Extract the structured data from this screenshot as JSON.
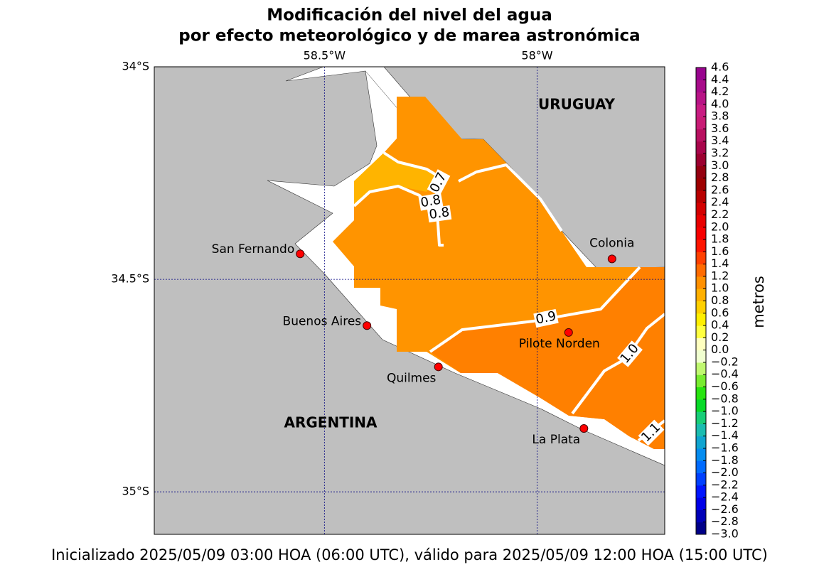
{
  "title": [
    "Modificación del nivel del agua",
    "por efecto meteorológico y de marea astronómica"
  ],
  "footer": "Inicializado 2025/05/09 03:00 HOA (06:00 UTC), válido para 2025/05/09 12:00 HOA (15:00 UTC)",
  "map": {
    "xlim": [
      58.9,
      57.7
    ],
    "ylim": [
      34,
      35.1
    ],
    "xticks": [
      {
        "value": 58.5,
        "label": "58.5°W"
      },
      {
        "value": 58,
        "label": "58°W"
      }
    ],
    "yticks": [
      {
        "value": 34,
        "label": "34°S"
      },
      {
        "value": 34.5,
        "label": "34.5°S"
      },
      {
        "value": 35,
        "label": "35°S"
      }
    ],
    "grid": true,
    "grid_color": "#000080",
    "land_color": "#bfbfbf",
    "countries": [
      "URUGUAY",
      "ARGENTINA"
    ],
    "cities": [
      {
        "name": "San Fernando",
        "lon": 58.557,
        "lat": 34.44
      },
      {
        "name": "Buenos Aires",
        "lon": 58.4,
        "lat": 34.609
      },
      {
        "name": "Quilmes",
        "lon": 58.232,
        "lat": 34.706
      },
      {
        "name": "Pilote Norden",
        "lon": 57.926,
        "lat": 34.625
      },
      {
        "name": "Colonia",
        "lon": 57.824,
        "lat": 34.452
      },
      {
        "name": "La Plata",
        "lon": 57.89,
        "lat": 34.851
      }
    ],
    "marker_color": "#ff0000",
    "contour_labels": [
      "0.7",
      "0.8",
      "0.8",
      "0.9",
      "1.0",
      "1.1"
    ]
  },
  "colorbar": {
    "label": "metros",
    "lim": [
      -3.0,
      4.6
    ],
    "ticks": [
      {
        "value": -3.0,
        "label": "−3.0"
      },
      {
        "value": -2.8,
        "label": "−2.8"
      },
      {
        "value": -2.6,
        "label": "−2.6"
      },
      {
        "value": -2.4,
        "label": "−2.4"
      },
      {
        "value": -2.2,
        "label": "−2.2"
      },
      {
        "value": -2.0,
        "label": "−2.0"
      },
      {
        "value": -1.8,
        "label": "−1.8"
      },
      {
        "value": -1.6,
        "label": "−1.6"
      },
      {
        "value": -1.4,
        "label": "−1.4"
      },
      {
        "value": -1.2,
        "label": "−1.2"
      },
      {
        "value": -1.0,
        "label": "−1.0"
      },
      {
        "value": -0.8,
        "label": "−0.8"
      },
      {
        "value": -0.6,
        "label": "−0.6"
      },
      {
        "value": -0.4,
        "label": "−0.4"
      },
      {
        "value": -0.2,
        "label": "−0.2"
      },
      {
        "value": 0.0,
        "label": "0.0"
      },
      {
        "value": 0.2,
        "label": "0.2"
      },
      {
        "value": 0.4,
        "label": "0.4"
      },
      {
        "value": 0.6,
        "label": "0.6"
      },
      {
        "value": 0.8,
        "label": "0.8"
      },
      {
        "value": 1.0,
        "label": "1.0"
      },
      {
        "value": 1.2,
        "label": "1.2"
      },
      {
        "value": 1.4,
        "label": "1.4"
      },
      {
        "value": 1.6,
        "label": "1.6"
      },
      {
        "value": 1.8,
        "label": "1.8"
      },
      {
        "value": 2.0,
        "label": "2.0"
      },
      {
        "value": 2.2,
        "label": "2.2"
      },
      {
        "value": 2.4,
        "label": "2.4"
      },
      {
        "value": 2.6,
        "label": "2.6"
      },
      {
        "value": 2.8,
        "label": "2.8"
      },
      {
        "value": 3.0,
        "label": "3.0"
      },
      {
        "value": 3.2,
        "label": "3.2"
      },
      {
        "value": 3.4,
        "label": "3.4"
      },
      {
        "value": 3.6,
        "label": "3.6"
      },
      {
        "value": 3.8,
        "label": "3.8"
      },
      {
        "value": 4.0,
        "label": "4.0"
      },
      {
        "value": 4.2,
        "label": "4.2"
      },
      {
        "value": 4.4,
        "label": "4.4"
      },
      {
        "value": 4.6,
        "label": "4.6"
      }
    ],
    "stops": [
      {
        "value": -3.0,
        "color": "#000070"
      },
      {
        "value": -2.4,
        "color": "#0000ff"
      },
      {
        "value": -1.8,
        "color": "#0080ff"
      },
      {
        "value": -1.2,
        "color": "#20c8a0"
      },
      {
        "value": -0.8,
        "color": "#00e000"
      },
      {
        "value": -0.4,
        "color": "#a0f040"
      },
      {
        "value": -0.2,
        "color": "#e0ffa0"
      },
      {
        "value": 0.0,
        "color": "#ffffff"
      },
      {
        "value": 0.4,
        "color": "#ffff00"
      },
      {
        "value": 0.8,
        "color": "#ffc000"
      },
      {
        "value": 1.2,
        "color": "#ff8000"
      },
      {
        "value": 1.8,
        "color": "#ff0000"
      },
      {
        "value": 2.2,
        "color": "#e00000"
      },
      {
        "value": 2.8,
        "color": "#900000"
      },
      {
        "value": 3.2,
        "color": "#a00040"
      },
      {
        "value": 3.8,
        "color": "#d02080"
      },
      {
        "value": 4.6,
        "color": "#900090"
      }
    ]
  }
}
